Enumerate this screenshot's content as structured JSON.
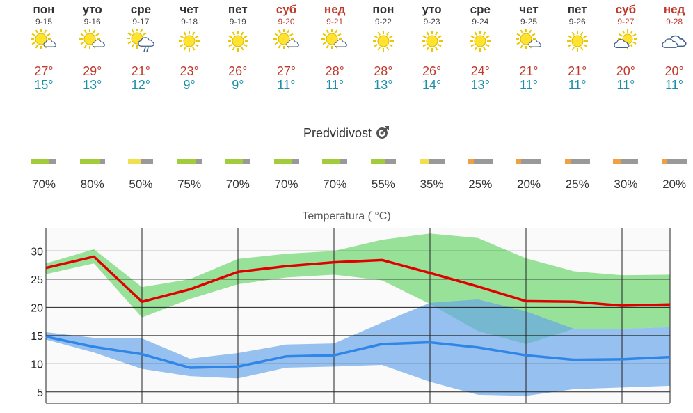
{
  "days": [
    {
      "name": "пон",
      "date": "9-15",
      "weekend": false,
      "icon": "sun-cloud-icon",
      "max": "27°",
      "min": "15°"
    },
    {
      "name": "уто",
      "date": "9-16",
      "weekend": false,
      "icon": "sun-cloud-icon",
      "max": "29°",
      "min": "13°"
    },
    {
      "name": "сре",
      "date": "9-17",
      "weekend": false,
      "icon": "sun-cloud-rain-icon",
      "max": "21°",
      "min": "12°"
    },
    {
      "name": "чет",
      "date": "9-18",
      "weekend": false,
      "icon": "sun-icon",
      "max": "23°",
      "min": "9°"
    },
    {
      "name": "пет",
      "date": "9-19",
      "weekend": false,
      "icon": "sun-icon",
      "max": "26°",
      "min": "9°"
    },
    {
      "name": "суб",
      "date": "9-20",
      "weekend": true,
      "icon": "sun-cloud-icon",
      "max": "27°",
      "min": "11°"
    },
    {
      "name": "нед",
      "date": "9-21",
      "weekend": true,
      "icon": "sun-cloud-icon",
      "max": "28°",
      "min": "11°"
    },
    {
      "name": "пон",
      "date": "9-22",
      "weekend": false,
      "icon": "sun-icon",
      "max": "28°",
      "min": "13°"
    },
    {
      "name": "уто",
      "date": "9-23",
      "weekend": false,
      "icon": "sun-icon",
      "max": "26°",
      "min": "14°"
    },
    {
      "name": "сре",
      "date": "9-24",
      "weekend": false,
      "icon": "sun-icon",
      "max": "24°",
      "min": "13°"
    },
    {
      "name": "чет",
      "date": "9-25",
      "weekend": false,
      "icon": "sun-cloud-icon",
      "max": "21°",
      "min": "11°"
    },
    {
      "name": "пет",
      "date": "9-26",
      "weekend": false,
      "icon": "sun-icon",
      "max": "21°",
      "min": "11°"
    },
    {
      "name": "суб",
      "date": "9-27",
      "weekend": true,
      "icon": "cloud-sun-icon",
      "max": "20°",
      "min": "11°"
    },
    {
      "name": "нед",
      "date": "9-28",
      "weekend": true,
      "icon": "cloud-icon",
      "max": "20°",
      "min": "11°"
    }
  ],
  "predictability": {
    "title": "Predvidivost",
    "icon": "target-icon",
    "values": [
      {
        "label": "70%",
        "fraction": 0.7,
        "color": "#a3cc3c"
      },
      {
        "label": "80%",
        "fraction": 0.8,
        "color": "#a3cc3c"
      },
      {
        "label": "50%",
        "fraction": 0.5,
        "color": "#f0e050"
      },
      {
        "label": "75%",
        "fraction": 0.75,
        "color": "#a3cc3c"
      },
      {
        "label": "70%",
        "fraction": 0.7,
        "color": "#a3cc3c"
      },
      {
        "label": "70%",
        "fraction": 0.7,
        "color": "#a3cc3c"
      },
      {
        "label": "70%",
        "fraction": 0.7,
        "color": "#a3cc3c"
      },
      {
        "label": "55%",
        "fraction": 0.55,
        "color": "#a3cc3c"
      },
      {
        "label": "35%",
        "fraction": 0.35,
        "color": "#f0e050"
      },
      {
        "label": "25%",
        "fraction": 0.25,
        "color": "#f0a040"
      },
      {
        "label": "20%",
        "fraction": 0.2,
        "color": "#f0a040"
      },
      {
        "label": "25%",
        "fraction": 0.25,
        "color": "#f0a040"
      },
      {
        "label": "30%",
        "fraction": 0.3,
        "color": "#f0a040"
      },
      {
        "label": "20%",
        "fraction": 0.2,
        "color": "#f0a040"
      }
    ]
  },
  "chart_data": {
    "type": "line",
    "title": "Temperatura ( °C)",
    "ylim": [
      3,
      34
    ],
    "yticks": [
      5,
      10,
      15,
      20,
      25,
      30
    ],
    "grid": true,
    "x": [
      "9-15",
      "9-16",
      "9-17",
      "9-18",
      "9-19",
      "9-20",
      "9-21",
      "9-22",
      "9-23",
      "9-24",
      "9-25",
      "9-26",
      "9-27",
      "9-28"
    ],
    "series": [
      {
        "color": "#e00000",
        "values": [
          27,
          29,
          21,
          23.2,
          26.3,
          27.3,
          28,
          28.4,
          26.1,
          23.7,
          21.1,
          21,
          20.3,
          20.5
        ]
      },
      {
        "color": "#2f86e6",
        "values": [
          14.8,
          13,
          11.7,
          9.3,
          9.5,
          11.3,
          11.5,
          13.5,
          13.8,
          12.9,
          11.5,
          10.7,
          10.8,
          11.2
        ]
      }
    ],
    "bands": [
      {
        "color": "#7fdb7f",
        "opacity": 0.8,
        "upper": [
          27.8,
          30.3,
          23.6,
          25,
          28.6,
          29.5,
          30,
          32,
          33.1,
          32.3,
          28.7,
          26.4,
          25.7,
          25.8
        ],
        "lower": [
          25.9,
          27.8,
          18.2,
          21.5,
          24.1,
          25.3,
          25.8,
          24.8,
          20.6,
          15.8,
          13.5,
          16.2,
          16.2,
          16.5
        ]
      },
      {
        "color": "#6aa6ea",
        "opacity": 0.7,
        "upper": [
          15.6,
          14.6,
          14.5,
          10.9,
          11.9,
          13.4,
          13.6,
          17.3,
          20.8,
          21.4,
          19.3,
          16.2,
          16.2,
          16.5
        ]
      }
    ],
    "blue_lower": [
      14.3,
      12,
      9.1,
      7.8,
      7.4,
      9.3,
      9.5,
      9.8,
      6.8,
      4.5,
      4.3,
      5.5,
      5.8,
      6.1
    ]
  }
}
